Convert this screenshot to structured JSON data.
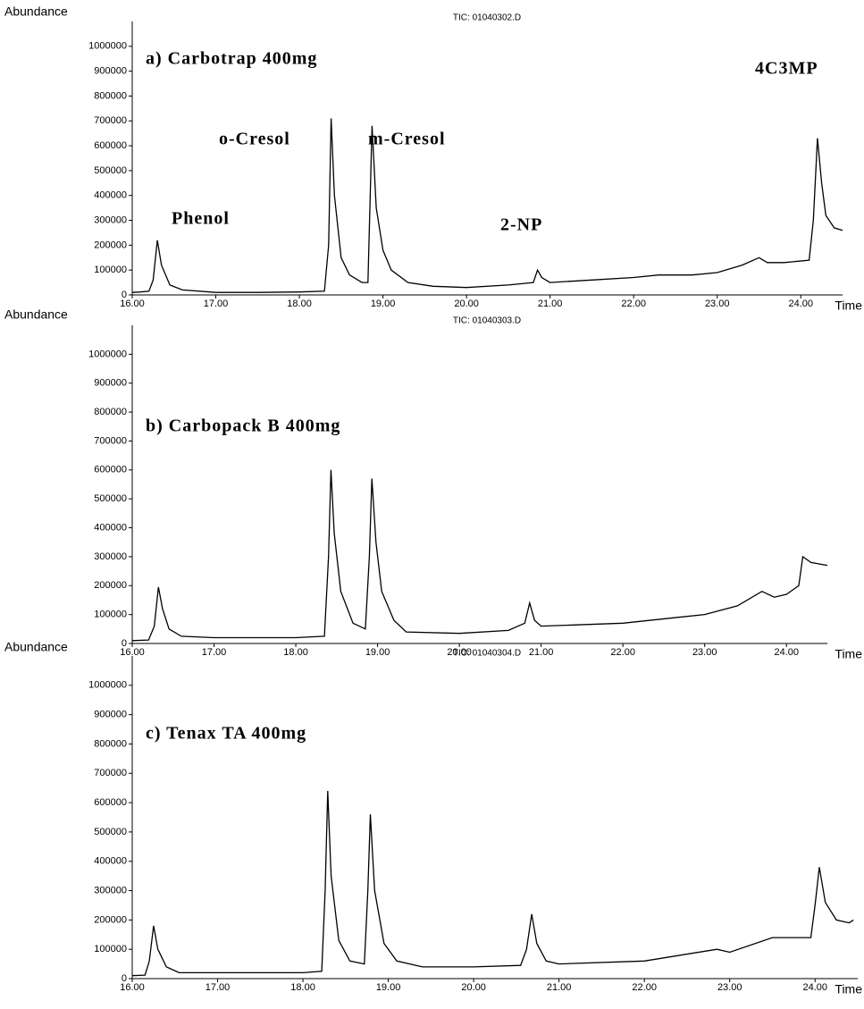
{
  "chart_data": [
    {
      "type": "line",
      "title": "TIC: 01040302.D",
      "y_label": "Abundance",
      "x_label": "Time",
      "annotations": [
        "a) Carbotrap 400mg",
        "o-Cresol",
        "m-Cresol",
        "Phenol",
        "2-NP",
        "4C3MP"
      ],
      "color": "#000000",
      "x": [
        16.0,
        16.1,
        16.2,
        16.25,
        16.3,
        16.35,
        16.45,
        16.6,
        17.0,
        17.5,
        18.0,
        18.3,
        18.35,
        18.38,
        18.42,
        18.5,
        18.6,
        18.75,
        18.82,
        18.87,
        18.92,
        19.0,
        19.1,
        19.3,
        19.6,
        20.0,
        20.5,
        20.8,
        20.85,
        20.9,
        21.0,
        21.5,
        22.0,
        22.3,
        22.7,
        23.0,
        23.3,
        23.5,
        23.6,
        23.8,
        24.1,
        24.15,
        24.2,
        24.25,
        24.3,
        24.4,
        24.5
      ],
      "values": [
        10000,
        12000,
        15000,
        60000,
        220000,
        120000,
        40000,
        20000,
        10000,
        10000,
        12000,
        15000,
        200000,
        710000,
        400000,
        150000,
        80000,
        50000,
        50000,
        680000,
        350000,
        180000,
        100000,
        50000,
        35000,
        30000,
        40000,
        50000,
        100000,
        70000,
        50000,
        60000,
        70000,
        80000,
        80000,
        90000,
        120000,
        150000,
        130000,
        130000,
        140000,
        300000,
        630000,
        450000,
        320000,
        270000,
        260000
      ],
      "xlim": [
        16,
        24.5
      ],
      "ylim": [
        0,
        1100000
      ],
      "xticks": [
        {
          "value": 16,
          "label": "16.00"
        },
        {
          "value": 17,
          "label": "17.00"
        },
        {
          "value": 18,
          "label": "18.00"
        },
        {
          "value": 19,
          "label": "19.00"
        },
        {
          "value": 20,
          "label": "20.00"
        },
        {
          "value": 21,
          "label": "21.00"
        },
        {
          "value": 22,
          "label": "22.00"
        },
        {
          "value": 23,
          "label": "23.00"
        },
        {
          "value": 24,
          "label": "24.00"
        }
      ],
      "yticks": [
        0,
        100000,
        200000,
        300000,
        400000,
        500000,
        600000,
        700000,
        800000,
        900000,
        1000000
      ]
    },
    {
      "type": "line",
      "title": "TIC: 01040303.D",
      "y_label": "Abundance",
      "x_label": "Time",
      "annotations": [
        "b) Carbopack B 400mg"
      ],
      "color": "#000000",
      "x": [
        16.0,
        16.2,
        16.27,
        16.32,
        16.37,
        16.45,
        16.6,
        17.0,
        18.0,
        18.35,
        18.4,
        18.43,
        18.47,
        18.55,
        18.7,
        18.85,
        18.9,
        18.93,
        18.98,
        19.05,
        19.2,
        19.35,
        20.0,
        20.6,
        20.8,
        20.86,
        20.92,
        21.0,
        22.0,
        23.0,
        23.4,
        23.7,
        23.85,
        24.0,
        24.15,
        24.2,
        24.3,
        24.5
      ],
      "values": [
        10000,
        12000,
        60000,
        195000,
        120000,
        50000,
        25000,
        20000,
        20000,
        25000,
        300000,
        600000,
        380000,
        180000,
        70000,
        50000,
        300000,
        570000,
        350000,
        180000,
        80000,
        40000,
        35000,
        45000,
        70000,
        140000,
        80000,
        60000,
        70000,
        100000,
        130000,
        180000,
        160000,
        170000,
        200000,
        300000,
        280000,
        270000
      ],
      "xlim": [
        16,
        24.5
      ],
      "ylim": [
        0,
        1100000
      ],
      "xticks": [
        {
          "value": 16,
          "label": "16.00"
        },
        {
          "value": 17,
          "label": "17.00"
        },
        {
          "value": 18,
          "label": "18.00"
        },
        {
          "value": 19,
          "label": "19.00"
        },
        {
          "value": 20,
          "label": "20.00"
        },
        {
          "value": 21,
          "label": "21.00"
        },
        {
          "value": 22,
          "label": "22.00"
        },
        {
          "value": 23,
          "label": "23.00"
        },
        {
          "value": 24,
          "label": "24.00"
        }
      ],
      "yticks": [
        0,
        100000,
        200000,
        300000,
        400000,
        500000,
        600000,
        700000,
        800000,
        900000,
        1000000
      ]
    },
    {
      "type": "line",
      "title": "TIC: 01040304.D",
      "y_label": "Abundance",
      "x_label": "Time",
      "annotations": [
        "c) Tenax TA 400mg"
      ],
      "color": "#000000",
      "x": [
        16.0,
        16.15,
        16.2,
        16.25,
        16.3,
        16.4,
        16.55,
        17.0,
        18.0,
        18.22,
        18.26,
        18.29,
        18.33,
        18.42,
        18.55,
        18.72,
        18.76,
        18.79,
        18.84,
        18.95,
        19.1,
        19.4,
        20.0,
        20.55,
        20.62,
        20.68,
        20.74,
        20.85,
        21.0,
        22.0,
        22.85,
        23.0,
        23.5,
        23.95,
        24.0,
        24.05,
        24.12,
        24.25,
        24.4,
        24.45
      ],
      "values": [
        10000,
        12000,
        60000,
        180000,
        100000,
        40000,
        20000,
        20000,
        20000,
        25000,
        300000,
        640000,
        350000,
        130000,
        60000,
        50000,
        300000,
        560000,
        300000,
        120000,
        60000,
        40000,
        40000,
        45000,
        100000,
        220000,
        120000,
        60000,
        50000,
        60000,
        100000,
        90000,
        140000,
        140000,
        250000,
        380000,
        260000,
        200000,
        190000,
        200000
      ],
      "xlim": [
        16,
        24.5
      ],
      "ylim": [
        0,
        1100000
      ],
      "xticks": [
        {
          "value": 16,
          "label": "16.00"
        },
        {
          "value": 17,
          "label": "17.00"
        },
        {
          "value": 18,
          "label": "18.00"
        },
        {
          "value": 19,
          "label": "19.00"
        },
        {
          "value": 20,
          "label": "20.00"
        },
        {
          "value": 21,
          "label": "21.00"
        },
        {
          "value": 22,
          "label": "22.00"
        },
        {
          "value": 23,
          "label": "23.00"
        },
        {
          "value": 24,
          "label": "24.00"
        }
      ],
      "yticks": [
        0,
        100000,
        200000,
        300000,
        400000,
        500000,
        600000,
        700000,
        800000,
        900000,
        1000000
      ]
    }
  ]
}
